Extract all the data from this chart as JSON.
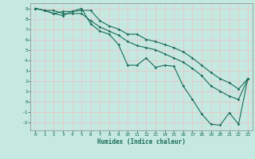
{
  "xlabel": "Humidex (Indice chaleur)",
  "ylabel": "",
  "background_color": "#c5e8e0",
  "grid_color": "#e8c8c8",
  "line_color": "#1a6e5a",
  "xlim": [
    -0.5,
    23.5
  ],
  "ylim": [
    -2.8,
    9.5
  ],
  "xticks": [
    0,
    1,
    2,
    3,
    4,
    5,
    6,
    7,
    8,
    9,
    10,
    11,
    12,
    13,
    14,
    15,
    16,
    17,
    18,
    19,
    20,
    21,
    22,
    23
  ],
  "yticks": [
    -2,
    -1,
    0,
    1,
    2,
    3,
    4,
    5,
    6,
    7,
    8,
    9
  ],
  "series": {
    "line1": [
      9.0,
      8.8,
      8.5,
      8.7,
      8.7,
      9.0,
      7.5,
      6.8,
      6.5,
      5.5,
      3.5,
      3.5,
      4.2,
      3.3,
      3.5,
      3.4,
      1.5,
      0.2,
      -1.2,
      -2.2,
      -2.3,
      -1.1,
      -2.2,
      2.2
    ],
    "line2": [
      9.0,
      8.8,
      8.8,
      8.5,
      8.5,
      8.5,
      7.8,
      7.2,
      6.8,
      6.4,
      5.8,
      5.4,
      5.2,
      5.0,
      4.6,
      4.2,
      3.8,
      3.2,
      2.5,
      1.5,
      1.0,
      0.5,
      0.2,
      2.2
    ],
    "line3": [
      9.0,
      8.8,
      8.5,
      8.3,
      8.7,
      8.8,
      8.8,
      7.8,
      7.3,
      7.0,
      6.5,
      6.5,
      6.0,
      5.8,
      5.5,
      5.2,
      4.8,
      4.2,
      3.5,
      2.8,
      2.2,
      1.8,
      1.2,
      2.2
    ]
  }
}
